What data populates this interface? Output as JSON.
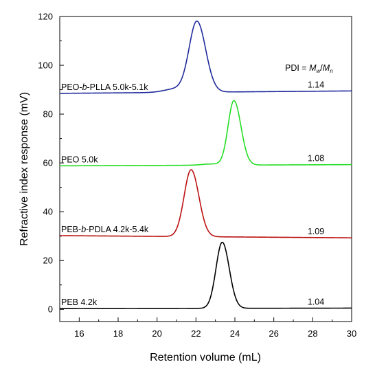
{
  "chart_data": {
    "type": "line",
    "title": "",
    "xlabel": "Retention volume (mL)",
    "ylabel": "Refractive index response (mV)",
    "xlim": [
      15,
      30
    ],
    "ylim": [
      -5,
      120
    ],
    "xticks": [
      16,
      18,
      20,
      22,
      24,
      26,
      28,
      30
    ],
    "yticks": [
      0,
      20,
      40,
      60,
      80,
      100,
      120
    ],
    "grid": false,
    "legend": "none",
    "annotation": {
      "prefix": "PDI = ",
      "mw": "M",
      "mw_sub": "w",
      "sep": "/",
      "mn": "M",
      "mn_sub": "n"
    },
    "series": [
      {
        "name": "PEO-b-PLLA 5.0k-5.1k",
        "label_parts": [
          {
            "t": "PEO-"
          },
          {
            "t": "b",
            "italic": true
          },
          {
            "t": "-PLLA 5.0k-5.1k"
          }
        ],
        "pdi": "1.14",
        "color": "#1f2a9c",
        "baseline": 88.5,
        "baseline_end": 89.5,
        "peak_x": 22.05,
        "peak_y": 117.8,
        "sigma_left": 0.4,
        "sigma_right": 0.45,
        "shoulder": {
          "x": 21.0,
          "height": 1.5,
          "sigma": 0.6
        }
      },
      {
        "name": "PEO 5.0k",
        "label_parts": [
          {
            "t": "PEO 5.0k"
          }
        ],
        "pdi": "1.08",
        "color": "#22dd22",
        "baseline": 58.8,
        "baseline_end": 59.3,
        "peak_x": 23.95,
        "peak_y": 85.5,
        "sigma_left": 0.3,
        "sigma_right": 0.36,
        "shoulder": {
          "x": 22.8,
          "height": 0.5,
          "sigma": 0.5
        }
      },
      {
        "name": "PEB-b-PDLA 4.2k-5.4k",
        "label_parts": [
          {
            "t": "PEB-"
          },
          {
            "t": "b",
            "italic": true
          },
          {
            "t": "-PDLA 4.2k-5.4k"
          }
        ],
        "pdi": "1.09",
        "color": "#bb1111",
        "baseline": 30.2,
        "baseline_end": 29.3,
        "peak_x": 21.75,
        "peak_y": 57.2,
        "sigma_left": 0.36,
        "sigma_right": 0.4,
        "shoulder": null
      },
      {
        "name": "PEB 4.2k",
        "label_parts": [
          {
            "t": "PEB 4.2k"
          }
        ],
        "pdi": "1.04",
        "color": "#000000",
        "baseline": 0.3,
        "baseline_end": 0.5,
        "peak_x": 23.35,
        "peak_y": 27.5,
        "sigma_left": 0.32,
        "sigma_right": 0.36,
        "shoulder": null
      }
    ]
  }
}
